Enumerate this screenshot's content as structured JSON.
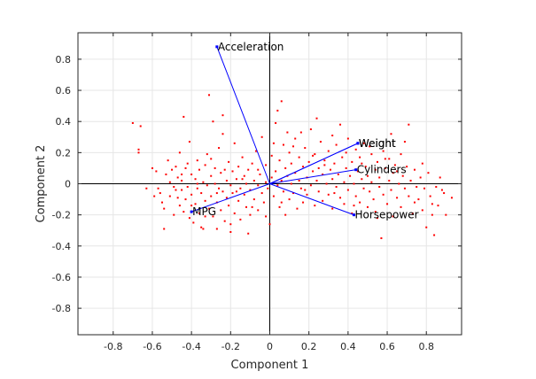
{
  "chart_data": {
    "type": "scatter",
    "subtype": "biplot",
    "title": "",
    "xlabel": "Component 1",
    "ylabel": "Component 2",
    "xlim": [
      -0.98,
      0.98
    ],
    "ylim": [
      -0.97,
      0.97
    ],
    "xticks": [
      -0.8,
      -0.6,
      -0.4,
      -0.2,
      0,
      0.2,
      0.4,
      0.6,
      0.8
    ],
    "xtick_labels": [
      "-0.8",
      "-0.6",
      "-0.4",
      "-0.2",
      "0",
      "0.2",
      "0.4",
      "0.6",
      "0.8"
    ],
    "yticks": [
      -0.8,
      -0.6,
      -0.4,
      -0.2,
      0,
      0.2,
      0.4,
      0.6,
      0.8
    ],
    "ytick_labels": [
      "-0.8",
      "-0.6",
      "-0.4",
      "-0.2",
      "0",
      "0.2",
      "0.4",
      "0.6",
      "0.8"
    ],
    "grid": true,
    "colors": {
      "vectors": "#0000ff",
      "points": "#ff0000",
      "zero_lines": "#000000"
    },
    "vectors": [
      {
        "name": "Acceleration",
        "x": -0.27,
        "y": 0.88
      },
      {
        "name": "Weight",
        "x": 0.45,
        "y": 0.26
      },
      {
        "name": "Weight",
        "x": 0.45,
        "y": 0.26
      },
      {
        "name": "Cylinders",
        "x": 0.44,
        "y": 0.09
      },
      {
        "name": "Horsepower",
        "x": 0.43,
        "y": -0.2
      },
      {
        "name": "MPG",
        "x": -0.4,
        "y": -0.18
      }
    ],
    "points": [
      [
        -0.7,
        0.39
      ],
      [
        -0.66,
        0.37
      ],
      [
        -0.67,
        0.2
      ],
      [
        -0.67,
        0.22
      ],
      [
        -0.58,
        0.08
      ],
      [
        -0.57,
        -0.03
      ],
      [
        -0.56,
        -0.06
      ],
      [
        -0.55,
        -0.12
      ],
      [
        -0.54,
        -0.16
      ],
      [
        -0.54,
        -0.29
      ],
      [
        -0.53,
        0.06
      ],
      [
        -0.52,
        0.15
      ],
      [
        -0.51,
        0.01
      ],
      [
        -0.51,
        -0.08
      ],
      [
        -0.5,
        0.09
      ],
      [
        -0.49,
        -0.02
      ],
      [
        -0.49,
        -0.2
      ],
      [
        -0.48,
        0.11
      ],
      [
        -0.47,
        0.04
      ],
      [
        -0.47,
        -0.09
      ],
      [
        -0.46,
        0.2
      ],
      [
        -0.46,
        -0.14
      ],
      [
        -0.45,
        -0.04
      ],
      [
        -0.45,
        0.02
      ],
      [
        -0.44,
        0.43
      ],
      [
        -0.44,
        -0.18
      ],
      [
        -0.43,
        0.1
      ],
      [
        -0.43,
        -0.1
      ],
      [
        -0.42,
        0.13
      ],
      [
        -0.42,
        -0.02
      ],
      [
        -0.41,
        0.27
      ],
      [
        -0.41,
        -0.22
      ],
      [
        -0.4,
        0.06
      ],
      [
        -0.4,
        -0.07
      ],
      [
        -0.39,
        -0.25
      ],
      [
        -0.38,
        0.03
      ],
      [
        -0.38,
        -0.13
      ],
      [
        -0.37,
        0.15
      ],
      [
        -0.37,
        -0.03
      ],
      [
        -0.36,
        0.09
      ],
      [
        -0.36,
        -0.19
      ],
      [
        -0.35,
        -0.06
      ],
      [
        -0.34,
        0.01
      ],
      [
        -0.34,
        -0.29
      ],
      [
        -0.33,
        0.12
      ],
      [
        -0.33,
        -0.11
      ],
      [
        -0.32,
        -0.01
      ],
      [
        -0.32,
        0.19
      ],
      [
        -0.31,
        -0.16
      ],
      [
        -0.3,
        0.05
      ],
      [
        -0.3,
        -0.08
      ],
      [
        -0.29,
        0.4
      ],
      [
        -0.29,
        -0.21
      ],
      [
        -0.28,
        0.0
      ],
      [
        -0.28,
        0.1
      ],
      [
        -0.27,
        -0.12
      ],
      [
        -0.26,
        -0.03
      ],
      [
        -0.26,
        0.23
      ],
      [
        -0.25,
        -0.17
      ],
      [
        -0.25,
        0.07
      ],
      [
        -0.24,
        -0.05
      ],
      [
        -0.24,
        0.32
      ],
      [
        -0.23,
        -0.24
      ],
      [
        -0.22,
        0.02
      ],
      [
        -0.22,
        -0.09
      ],
      [
        -0.21,
        0.14
      ],
      [
        -0.21,
        -0.14
      ],
      [
        -0.2,
        -0.01
      ],
      [
        -0.2,
        -0.31
      ],
      [
        -0.19,
        0.08
      ],
      [
        -0.19,
        -0.06
      ],
      [
        -0.18,
        0.26
      ],
      [
        -0.18,
        -0.19
      ],
      [
        -0.17,
        0.03
      ],
      [
        -0.16,
        -0.11
      ],
      [
        -0.16,
        0.11
      ],
      [
        -0.15,
        -0.03
      ],
      [
        -0.15,
        -0.23
      ],
      [
        -0.14,
        0.17
      ],
      [
        -0.13,
        -0.07
      ],
      [
        -0.13,
        0.05
      ],
      [
        -0.12,
        -0.15
      ],
      [
        -0.12,
        0.0
      ],
      [
        -0.11,
        0.09
      ],
      [
        -0.1,
        -0.04
      ],
      [
        -0.1,
        -0.2
      ],
      [
        -0.09,
        0.13
      ],
      [
        -0.08,
        0.02
      ],
      [
        -0.08,
        -0.1
      ],
      [
        -0.07,
        0.21
      ],
      [
        -0.06,
        -0.01
      ],
      [
        -0.06,
        -0.17
      ],
      [
        -0.05,
        0.06
      ],
      [
        -0.04,
        -0.06
      ],
      [
        -0.04,
        0.3
      ],
      [
        -0.03,
        -0.12
      ],
      [
        -0.02,
        0.01
      ],
      [
        -0.02,
        0.12
      ],
      [
        -0.01,
        -0.03
      ],
      [
        0.0,
        -0.26
      ],
      [
        0.01,
        0.04
      ],
      [
        0.01,
        0.18
      ],
      [
        0.02,
        -0.08
      ],
      [
        0.03,
        0.08
      ],
      [
        0.03,
        0.39
      ],
      [
        0.04,
        -0.01
      ],
      [
        0.04,
        0.47
      ],
      [
        0.05,
        -0.15
      ],
      [
        0.05,
        0.15
      ],
      [
        0.06,
        0.02
      ],
      [
        0.07,
        -0.05
      ],
      [
        0.07,
        0.25
      ],
      [
        0.08,
        0.1
      ],
      [
        0.08,
        -0.2
      ],
      [
        0.09,
        0.05
      ],
      [
        0.1,
        -0.1
      ],
      [
        0.1,
        0.2
      ],
      [
        0.11,
        0.0
      ],
      [
        0.11,
        0.13
      ],
      [
        0.12,
        -0.06
      ],
      [
        0.13,
        0.29
      ],
      [
        0.13,
        0.07
      ],
      [
        0.14,
        -0.16
      ],
      [
        0.15,
        0.02
      ],
      [
        0.15,
        0.17
      ],
      [
        0.16,
        -0.03
      ],
      [
        0.17,
        0.11
      ],
      [
        0.17,
        -0.12
      ],
      [
        0.18,
        0.23
      ],
      [
        0.19,
        0.04
      ],
      [
        0.19,
        -0.07
      ],
      [
        0.2,
        0.14
      ],
      [
        0.21,
        -0.01
      ],
      [
        0.21,
        0.35
      ],
      [
        0.22,
        0.08
      ],
      [
        0.23,
        -0.14
      ],
      [
        0.23,
        0.19
      ],
      [
        0.24,
        0.02
      ],
      [
        0.25,
        0.1
      ],
      [
        0.25,
        -0.05
      ],
      [
        0.26,
        0.27
      ],
      [
        0.27,
        0.06
      ],
      [
        0.27,
        -0.11
      ],
      [
        0.28,
        0.15
      ],
      [
        0.29,
        0.0
      ],
      [
        0.3,
        0.21
      ],
      [
        0.3,
        -0.07
      ],
      [
        0.31,
        0.09
      ],
      [
        0.32,
        0.03
      ],
      [
        0.32,
        -0.16
      ],
      [
        0.33,
        0.13
      ],
      [
        0.34,
        -0.02
      ],
      [
        0.34,
        0.25
      ],
      [
        0.35,
        0.06
      ],
      [
        0.36,
        -0.09
      ],
      [
        0.36,
        0.38
      ],
      [
        0.37,
        0.17
      ],
      [
        0.38,
        0.01
      ],
      [
        0.38,
        -0.13
      ],
      [
        0.39,
        0.1
      ],
      [
        0.4,
        0.29
      ],
      [
        0.4,
        -0.04
      ],
      [
        0.41,
        0.05
      ],
      [
        0.42,
        -0.19
      ],
      [
        0.42,
        0.14
      ],
      [
        0.43,
        0.0
      ],
      [
        0.44,
        0.22
      ],
      [
        0.44,
        -0.08
      ],
      [
        0.45,
        0.08
      ],
      [
        0.46,
        -0.12
      ],
      [
        0.46,
        0.17
      ],
      [
        0.47,
        0.03
      ],
      [
        0.48,
        -0.03
      ],
      [
        0.48,
        0.26
      ],
      [
        0.49,
        0.11
      ],
      [
        0.5,
        -0.15
      ],
      [
        0.5,
        0.05
      ],
      [
        0.51,
        -0.05
      ],
      [
        0.52,
        0.19
      ],
      [
        0.52,
        0.01
      ],
      [
        0.53,
        -0.1
      ],
      [
        0.54,
        0.09
      ],
      [
        0.54,
        -0.18
      ],
      [
        0.55,
        0.14
      ],
      [
        0.56,
        -0.02
      ],
      [
        0.56,
        0.04
      ],
      [
        0.57,
        -0.35
      ],
      [
        0.58,
        0.21
      ],
      [
        0.58,
        -0.07
      ],
      [
        0.59,
        0.1
      ],
      [
        0.6,
        -0.13
      ],
      [
        0.61,
        0.02
      ],
      [
        0.61,
        0.16
      ],
      [
        0.62,
        -0.04
      ],
      [
        0.63,
        -0.21
      ],
      [
        0.63,
        0.07
      ],
      [
        0.64,
        0.12
      ],
      [
        0.65,
        -0.09
      ],
      [
        0.66,
        0.0
      ],
      [
        0.67,
        0.19
      ],
      [
        0.67,
        -0.15
      ],
      [
        0.68,
        0.05
      ],
      [
        0.69,
        -0.03
      ],
      [
        0.7,
        0.11
      ],
      [
        0.71,
        0.38
      ],
      [
        0.71,
        -0.08
      ],
      [
        0.72,
        0.02
      ],
      [
        0.73,
        -0.19
      ],
      [
        0.74,
        0.09
      ],
      [
        0.75,
        -0.02
      ],
      [
        0.76,
        -0.1
      ],
      [
        0.77,
        0.04
      ],
      [
        0.78,
        -0.17
      ],
      [
        0.79,
        -0.03
      ],
      [
        0.8,
        -0.28
      ],
      [
        0.81,
        0.07
      ],
      [
        0.82,
        -0.08
      ],
      [
        0.83,
        -0.13
      ],
      [
        0.84,
        -0.33
      ],
      [
        0.85,
        -0.02
      ],
      [
        0.86,
        -0.14
      ],
      [
        0.87,
        0.04
      ],
      [
        0.89,
        -0.06
      ],
      [
        0.9,
        -0.2
      ],
      [
        0.93,
        -0.09
      ],
      [
        -0.63,
        -0.03
      ],
      [
        -0.6,
        0.1
      ],
      [
        -0.59,
        -0.08
      ],
      [
        -0.35,
        -0.28
      ],
      [
        -0.27,
        -0.29
      ],
      [
        -0.31,
        0.57
      ],
      [
        -0.24,
        0.44
      ],
      [
        -0.11,
        -0.32
      ],
      [
        0.06,
        0.53
      ],
      [
        0.16,
        0.33
      ],
      [
        0.24,
        0.42
      ],
      [
        0.32,
        0.31
      ],
      [
        0.62,
        0.32
      ],
      [
        -0.48,
        -0.04
      ],
      [
        -0.45,
        0.06
      ],
      [
        -0.4,
        -0.14
      ],
      [
        -0.37,
        0.0
      ],
      [
        -0.33,
        -0.21
      ],
      [
        -0.3,
        0.16
      ],
      [
        -0.27,
        -0.06
      ],
      [
        -0.23,
        0.09
      ],
      [
        -0.2,
        -0.26
      ],
      [
        -0.17,
        -0.05
      ],
      [
        -0.14,
        0.03
      ],
      [
        -0.09,
        -0.15
      ],
      [
        -0.06,
        0.09
      ],
      [
        -0.02,
        -0.21
      ],
      [
        0.02,
        0.26
      ],
      [
        0.06,
        -0.12
      ],
      [
        0.09,
        0.33
      ],
      [
        0.12,
        0.24
      ],
      [
        0.18,
        -0.04
      ],
      [
        0.22,
        0.18
      ],
      [
        0.28,
        0.12
      ],
      [
        0.33,
        -0.06
      ],
      [
        0.39,
        0.2
      ],
      [
        0.43,
        -0.14
      ],
      [
        0.47,
        0.13
      ],
      [
        0.51,
        0.24
      ],
      [
        0.55,
        -0.22
      ],
      [
        0.59,
        0.16
      ],
      [
        0.65,
        0.08
      ],
      [
        0.69,
        0.27
      ],
      [
        0.74,
        -0.12
      ],
      [
        0.78,
        0.13
      ],
      [
        0.83,
        -0.2
      ],
      [
        0.88,
        -0.04
      ]
    ]
  }
}
